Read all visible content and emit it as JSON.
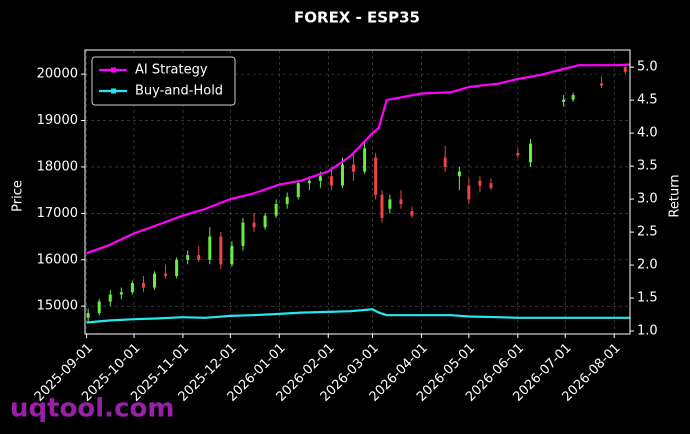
{
  "chart_data": {
    "type": "candlestick",
    "title": "FOREX - ESP35",
    "ylabel": "Price",
    "y2label": "Return",
    "watermark": "uqtool.com",
    "xlim": [
      "2025-08-31",
      "2026-08-11"
    ],
    "xticks": [
      "2025-09-01",
      "2025-10-01",
      "2025-11-01",
      "2025-12-01",
      "2026-01-01",
      "2026-02-01",
      "2026-03-01",
      "2026-04-01",
      "2026-05-01",
      "2026-06-01",
      "2026-07-01",
      "2026-08-01"
    ],
    "ylim": [
      14400,
      20520
    ],
    "yticks": [
      15000,
      16000,
      17000,
      18000,
      19000,
      20000
    ],
    "y2lim": [
      0.955,
      5.26
    ],
    "y2ticks": [
      {
        "value": 1,
        "label": "1.0"
      },
      1.5,
      {
        "value": 2,
        "label": "2.0"
      },
      2.5,
      {
        "value": 3,
        "label": "3.0"
      },
      3.5,
      {
        "value": 4,
        "label": "4.0"
      },
      4.5,
      {
        "value": 5,
        "label": "5.0"
      }
    ],
    "grid": true,
    "legend": "upper-left",
    "up_color": "#66ee44",
    "down_color": "#ee4444",
    "x": [
      "2025-09-02",
      "2025-09-09",
      "2025-09-16",
      "2025-09-23",
      "2025-09-30",
      "2025-10-07",
      "2025-10-14",
      "2025-10-21",
      "2025-10-28",
      "2025-11-04",
      "2025-11-11",
      "2025-11-18",
      "2025-11-25",
      "2025-12-02",
      "2025-12-09",
      "2025-12-16",
      "2025-12-23",
      "2025-12-30",
      "2026-01-06",
      "2026-01-13",
      "2026-01-20",
      "2026-01-27",
      "2026-02-03",
      "2026-02-10",
      "2026-02-17",
      "2026-02-24",
      "2026-03-03",
      "2026-03-07",
      "2026-03-12",
      "2026-03-19",
      "2026-03-26",
      "2026-04-16",
      "2026-04-25",
      "2026-05-01",
      "2026-05-08",
      "2026-05-15",
      "2026-06-01",
      "2026-06-09",
      "2026-06-30",
      "2026-07-06",
      "2026-07-24",
      "2026-08-08"
    ],
    "open": [
      14750,
      14850,
      15100,
      15250,
      15300,
      15500,
      15400,
      15700,
      15650,
      16000,
      16100,
      16000,
      16500,
      15900,
      16300,
      16800,
      16700,
      16950,
      17200,
      17350,
      17650,
      17700,
      17800,
      17600,
      18050,
      17900,
      18200,
      17400,
      17100,
      17300,
      17050,
      18200,
      17800,
      17600,
      17700,
      17650,
      18300,
      18100,
      19400,
      19450,
      19800,
      20150
    ],
    "high": [
      14950,
      15150,
      15350,
      15400,
      15550,
      15650,
      15750,
      15900,
      16050,
      16200,
      16300,
      16700,
      16600,
      16400,
      16900,
      17000,
      17000,
      17300,
      17450,
      17700,
      17800,
      17900,
      18000,
      18200,
      18300,
      18550,
      18300,
      17500,
      17400,
      17500,
      17150,
      18450,
      18000,
      17750,
      17800,
      17750,
      18400,
      18600,
      19550,
      19600,
      19950,
      20200
    ],
    "low": [
      14650,
      14800,
      15000,
      15150,
      15250,
      15300,
      15350,
      15600,
      15600,
      15900,
      15950,
      15900,
      15800,
      15850,
      16200,
      16600,
      16650,
      16900,
      17100,
      17300,
      17500,
      17550,
      17500,
      17550,
      17700,
      17850,
      17300,
      16800,
      17000,
      17100,
      16900,
      17900,
      17500,
      17200,
      17450,
      17500,
      18200,
      18000,
      19300,
      19400,
      19700,
      20000
    ],
    "close": [
      14850,
      15100,
      15250,
      15300,
      15500,
      15400,
      15700,
      15650,
      16000,
      16100,
      16000,
      16500,
      15900,
      16300,
      16800,
      16700,
      16950,
      17200,
      17350,
      17650,
      17700,
      17800,
      17600,
      18050,
      17900,
      18400,
      17400,
      16900,
      17300,
      17200,
      16950,
      18000,
      17900,
      17300,
      17600,
      17550,
      18250,
      18500,
      19450,
      19550,
      19750,
      20050
    ],
    "series": [
      {
        "name": "AI Strategy",
        "color": "#ff00ff",
        "axis": "y2",
        "x": [
          "2025-09-01",
          "2025-09-15",
          "2025-10-01",
          "2025-10-15",
          "2025-11-01",
          "2025-11-15",
          "2025-12-01",
          "2025-12-15",
          "2026-01-01",
          "2026-01-15",
          "2026-02-01",
          "2026-02-15",
          "2026-03-01",
          "2026-03-05",
          "2026-03-10",
          "2026-04-01",
          "2026-04-20",
          "2026-05-01",
          "2026-05-20",
          "2026-06-01",
          "2026-06-15",
          "2026-07-01",
          "2026-07-10",
          "2026-08-01",
          "2026-08-11"
        ],
        "values": [
          2.18,
          2.3,
          2.48,
          2.6,
          2.75,
          2.85,
          3.0,
          3.08,
          3.22,
          3.28,
          3.42,
          3.65,
          4.0,
          4.08,
          4.5,
          4.6,
          4.62,
          4.7,
          4.75,
          4.82,
          4.88,
          4.98,
          5.03,
          5.03,
          5.04
        ]
      },
      {
        "name": "Buy-and-Hold",
        "color": "#22e8f0",
        "axis": "y2",
        "x": [
          "2025-09-01",
          "2025-09-15",
          "2025-10-01",
          "2025-10-15",
          "2025-11-01",
          "2025-11-15",
          "2025-12-01",
          "2025-12-15",
          "2026-01-01",
          "2026-01-15",
          "2026-02-01",
          "2026-02-15",
          "2026-03-01",
          "2026-03-05",
          "2026-03-10",
          "2026-04-01",
          "2026-04-20",
          "2026-05-01",
          "2026-05-20",
          "2026-06-01",
          "2026-06-15",
          "2026-07-01",
          "2026-07-10",
          "2026-08-01",
          "2026-08-11"
        ],
        "values": [
          1.13,
          1.16,
          1.18,
          1.19,
          1.21,
          1.2,
          1.23,
          1.24,
          1.26,
          1.28,
          1.29,
          1.3,
          1.33,
          1.28,
          1.24,
          1.24,
          1.24,
          1.22,
          1.21,
          1.2,
          1.2,
          1.2,
          1.2,
          1.2,
          1.2
        ]
      }
    ]
  }
}
